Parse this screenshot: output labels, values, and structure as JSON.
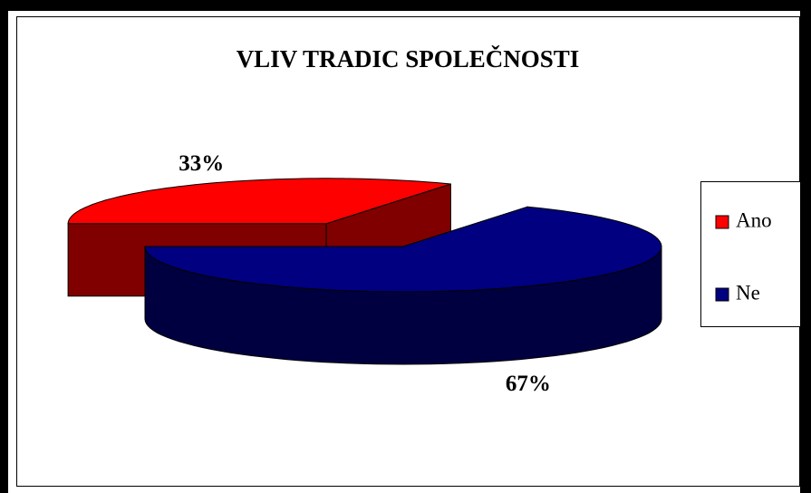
{
  "chart_data": {
    "type": "pie3d",
    "title": "VLIV TRADIC SPOLEČNOSTI",
    "categories": [
      "Ano",
      "Ne"
    ],
    "values": [
      33,
      67
    ],
    "value_labels": [
      "33%",
      "67%"
    ],
    "colors": [
      "#ff0000",
      "#000080"
    ],
    "side_colors": [
      "#800000",
      "#000040"
    ],
    "legend": "right"
  }
}
